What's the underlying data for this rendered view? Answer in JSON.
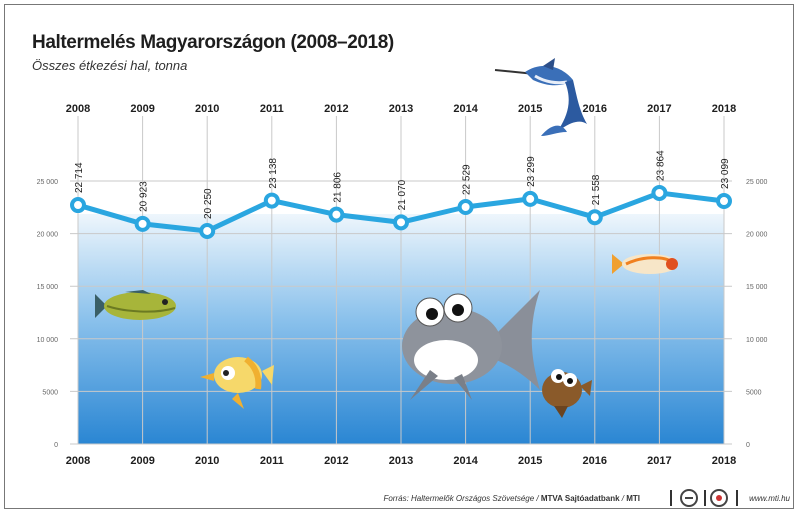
{
  "title": "Haltermelés Magyarországon (2008–2018)",
  "subtitle": "Összes étkezési hal, tonna",
  "chart_data": {
    "type": "line",
    "categories": [
      "2008",
      "2009",
      "2010",
      "2011",
      "2012",
      "2013",
      "2014",
      "2015",
      "2016",
      "2017",
      "2018"
    ],
    "values": [
      22714,
      20923,
      20250,
      23138,
      21806,
      21070,
      22529,
      23299,
      21558,
      23864,
      23099
    ],
    "value_labels": [
      "22 714",
      "20 923",
      "20 250",
      "23 138",
      "21 806",
      "21 070",
      "22 529",
      "23 299",
      "21 558",
      "23 864",
      "23 099"
    ],
    "y_ticks": [
      0,
      5000,
      10000,
      15000,
      20000,
      25000
    ],
    "y_tick_labels": [
      "0",
      "5000",
      "10 000",
      "15 000",
      "20 000",
      "25 000"
    ],
    "ylim": [
      0,
      25000
    ],
    "grid": true,
    "colors": {
      "line": "#2aa6e0",
      "water_top": "#e9f3fb",
      "water_bottom": "#2a86d3"
    }
  },
  "footer": {
    "source_prefix": "Forrás: Haltermelők Országos Szövetsége / ",
    "source_bold": "MTVA Sajtóadatbank",
    "source_suffix": " / ",
    "source_mti": "MTI",
    "url": "www.mti.hu"
  },
  "decorations": [
    "marlin-icon",
    "fish-icon",
    "fish-icon",
    "fish-icon",
    "fish-icon",
    "fish-icon"
  ]
}
